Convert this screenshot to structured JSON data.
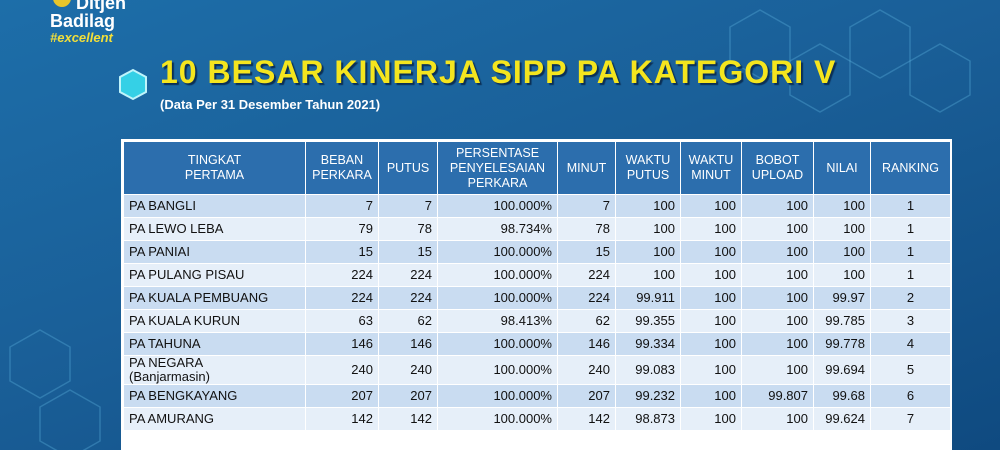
{
  "logo": {
    "line1": "Ditjen",
    "line2": "Badilag",
    "tagline": "#excellent"
  },
  "title": "10 BESAR KINERJA SIPP PA KATEGORI V",
  "subtitle": "(Data Per 31 Desember Tahun 2021)",
  "table": {
    "columns": [
      "TINGKAT\nPERTAMA",
      "BEBAN\nPERKARA",
      "PUTUS",
      "PERSENTASE\nPENYELESAIAN\nPERKARA",
      "MINUT",
      "WAKTU\nPUTUS",
      "WAKTU\nMINUT",
      "BOBOT\nUPLOAD",
      "NILAI",
      "RANKING"
    ],
    "rows": [
      [
        "PA BANGLI",
        "7",
        "7",
        "100.000%",
        "7",
        "100",
        "100",
        "100",
        "100",
        "1"
      ],
      [
        "PA LEWO LEBA",
        "79",
        "78",
        "98.734%",
        "78",
        "100",
        "100",
        "100",
        "100",
        "1"
      ],
      [
        "PA PANIAI",
        "15",
        "15",
        "100.000%",
        "15",
        "100",
        "100",
        "100",
        "100",
        "1"
      ],
      [
        "PA PULANG PISAU",
        "224",
        "224",
        "100.000%",
        "224",
        "100",
        "100",
        "100",
        "100",
        "1"
      ],
      [
        "PA KUALA PEMBUANG",
        "224",
        "224",
        "100.000%",
        "224",
        "99.911",
        "100",
        "100",
        "99.97",
        "2"
      ],
      [
        "PA KUALA KURUN",
        "63",
        "62",
        "98.413%",
        "62",
        "99.355",
        "100",
        "100",
        "99.785",
        "3"
      ],
      [
        "PA TAHUNA",
        "146",
        "146",
        "100.000%",
        "146",
        "99.334",
        "100",
        "100",
        "99.778",
        "4"
      ],
      [
        "PA NEGARA\n(Banjarmasin)",
        "240",
        "240",
        "100.000%",
        "240",
        "99.083",
        "100",
        "100",
        "99.694",
        "5"
      ],
      [
        "PA BENGKAYANG",
        "207",
        "207",
        "100.000%",
        "207",
        "99.232",
        "100",
        "99.807",
        "99.68",
        "6"
      ],
      [
        "PA AMURANG",
        "142",
        "142",
        "100.000%",
        "142",
        "98.873",
        "100",
        "100",
        "99.624",
        "7"
      ]
    ]
  }
}
